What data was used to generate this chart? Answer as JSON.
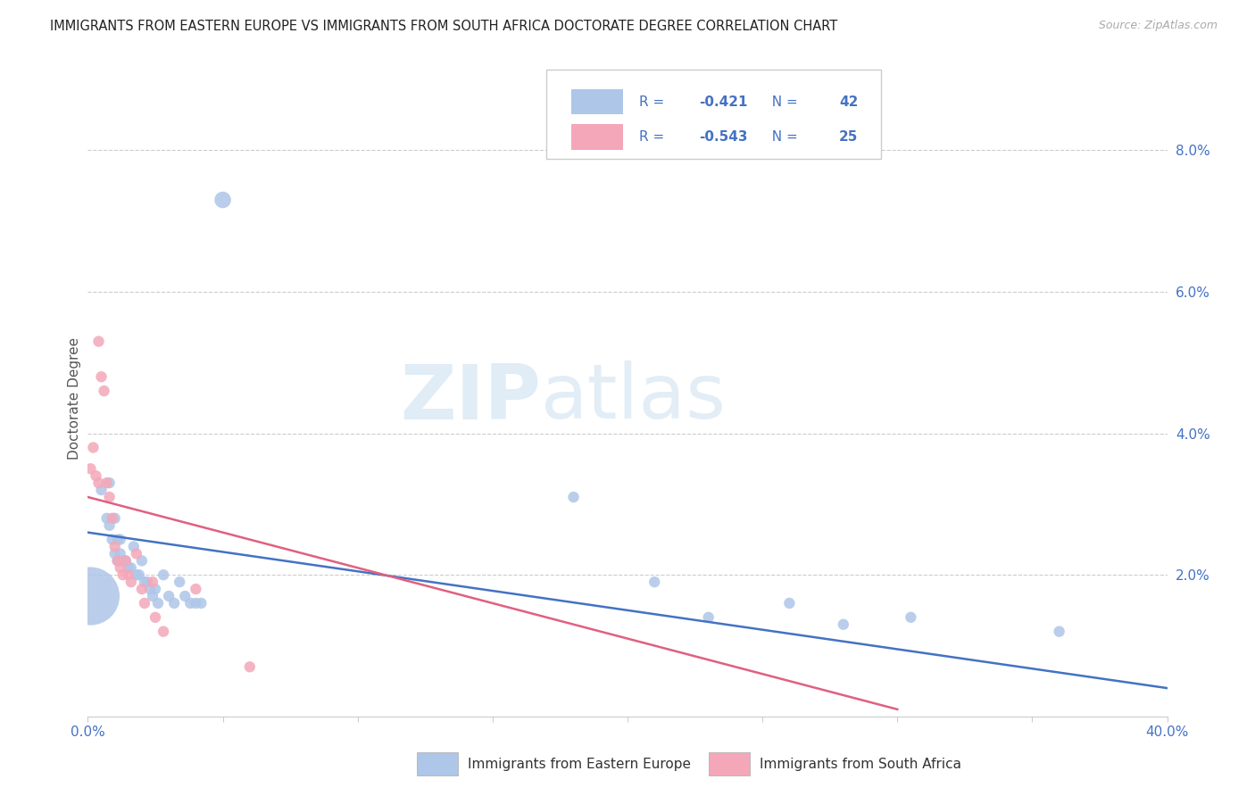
{
  "title": "IMMIGRANTS FROM EASTERN EUROPE VS IMMIGRANTS FROM SOUTH AFRICA DOCTORATE DEGREE CORRELATION CHART",
  "source": "Source: ZipAtlas.com",
  "ylabel": "Doctorate Degree",
  "right_yticks": [
    0.0,
    0.02,
    0.04,
    0.06,
    0.08
  ],
  "right_yticklabels": [
    "",
    "2.0%",
    "4.0%",
    "6.0%",
    "8.0%"
  ],
  "xlim": [
    0.0,
    0.4
  ],
  "ylim": [
    0.0,
    0.09
  ],
  "blue_label": "Immigrants from Eastern Europe",
  "pink_label": "Immigrants from South Africa",
  "blue_R": -0.421,
  "blue_N": 42,
  "pink_R": -0.543,
  "pink_N": 25,
  "blue_color": "#aec6e8",
  "pink_color": "#f4a7b9",
  "blue_line_color": "#4472c4",
  "pink_line_color": "#e06080",
  "title_color": "#222222",
  "source_color": "#aaaaaa",
  "axis_color": "#4472c4",
  "watermark_zip": "ZIP",
  "watermark_atlas": "atlas",
  "blue_line_x": [
    0.0,
    0.4
  ],
  "blue_line_y": [
    0.026,
    0.004
  ],
  "pink_line_x": [
    0.0,
    0.3
  ],
  "pink_line_y": [
    0.031,
    0.001
  ],
  "blue_points": [
    [
      0.05,
      0.073,
      180
    ],
    [
      0.005,
      0.032,
      80
    ],
    [
      0.007,
      0.028,
      80
    ],
    [
      0.008,
      0.033,
      80
    ],
    [
      0.008,
      0.027,
      80
    ],
    [
      0.009,
      0.025,
      80
    ],
    [
      0.01,
      0.023,
      80
    ],
    [
      0.01,
      0.028,
      80
    ],
    [
      0.011,
      0.025,
      80
    ],
    [
      0.011,
      0.022,
      80
    ],
    [
      0.012,
      0.025,
      80
    ],
    [
      0.012,
      0.023,
      80
    ],
    [
      0.013,
      0.022,
      80
    ],
    [
      0.014,
      0.022,
      80
    ],
    [
      0.015,
      0.021,
      80
    ],
    [
      0.016,
      0.021,
      80
    ],
    [
      0.017,
      0.024,
      80
    ],
    [
      0.018,
      0.02,
      80
    ],
    [
      0.019,
      0.02,
      80
    ],
    [
      0.02,
      0.022,
      80
    ],
    [
      0.021,
      0.019,
      80
    ],
    [
      0.022,
      0.019,
      80
    ],
    [
      0.023,
      0.018,
      80
    ],
    [
      0.024,
      0.017,
      80
    ],
    [
      0.025,
      0.018,
      80
    ],
    [
      0.026,
      0.016,
      80
    ],
    [
      0.028,
      0.02,
      80
    ],
    [
      0.03,
      0.017,
      80
    ],
    [
      0.032,
      0.016,
      80
    ],
    [
      0.034,
      0.019,
      80
    ],
    [
      0.036,
      0.017,
      80
    ],
    [
      0.038,
      0.016,
      80
    ],
    [
      0.04,
      0.016,
      80
    ],
    [
      0.042,
      0.016,
      80
    ],
    [
      0.18,
      0.031,
      80
    ],
    [
      0.21,
      0.019,
      80
    ],
    [
      0.23,
      0.014,
      80
    ],
    [
      0.26,
      0.016,
      80
    ],
    [
      0.28,
      0.013,
      80
    ],
    [
      0.305,
      0.014,
      80
    ],
    [
      0.36,
      0.012,
      80
    ],
    [
      0.001,
      0.017,
      2200
    ]
  ],
  "pink_points": [
    [
      0.001,
      0.035,
      80
    ],
    [
      0.002,
      0.038,
      80
    ],
    [
      0.003,
      0.034,
      80
    ],
    [
      0.004,
      0.033,
      80
    ],
    [
      0.004,
      0.053,
      80
    ],
    [
      0.005,
      0.048,
      80
    ],
    [
      0.006,
      0.046,
      80
    ],
    [
      0.007,
      0.033,
      80
    ],
    [
      0.008,
      0.031,
      80
    ],
    [
      0.009,
      0.028,
      80
    ],
    [
      0.01,
      0.024,
      80
    ],
    [
      0.011,
      0.022,
      80
    ],
    [
      0.012,
      0.021,
      80
    ],
    [
      0.013,
      0.02,
      80
    ],
    [
      0.014,
      0.022,
      80
    ],
    [
      0.015,
      0.02,
      80
    ],
    [
      0.016,
      0.019,
      80
    ],
    [
      0.018,
      0.023,
      80
    ],
    [
      0.02,
      0.018,
      80
    ],
    [
      0.021,
      0.016,
      80
    ],
    [
      0.024,
      0.019,
      80
    ],
    [
      0.025,
      0.014,
      80
    ],
    [
      0.028,
      0.012,
      80
    ],
    [
      0.04,
      0.018,
      80
    ],
    [
      0.06,
      0.007,
      80
    ]
  ]
}
